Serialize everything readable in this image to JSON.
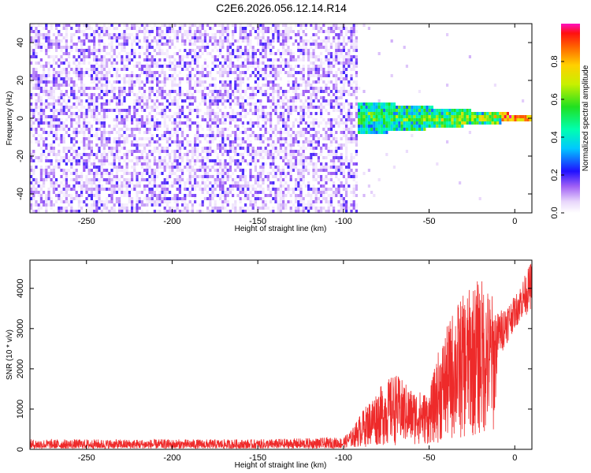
{
  "title": "C2E6.2026.056.12.14.R14",
  "colors": {
    "spectrogram_base": "#7a1ff0",
    "snr_line": "#ee2a2a",
    "frame": "#000000"
  },
  "chart_data": [
    {
      "type": "heatmap",
      "name": "spectrogram",
      "title": "C2E6.2026.056.12.14.R14",
      "xlabel": "Height of straight line (km)",
      "ylabel": "Frequency (Hz)",
      "xlim": [
        -283,
        10
      ],
      "ylim": [
        -50,
        50
      ],
      "x_ticks": [
        -250,
        -200,
        -150,
        -100,
        -50,
        0
      ],
      "y_ticks": [
        -40,
        -20,
        0,
        20,
        40
      ],
      "noise_region": {
        "x": [
          -283,
          -92
        ],
        "y": [
          -50,
          50
        ],
        "amplitude": [
          0.02,
          0.2
        ]
      },
      "signal_region": {
        "x": [
          -93,
          10
        ],
        "center_freq": 0,
        "half_width_at_start": 7,
        "half_width_at_end": 1,
        "amplitude_peak": 1.0
      },
      "colorbar": {
        "label": "Normalized spectral amplitude",
        "range": [
          0,
          1
        ],
        "ticks": [
          "0.0",
          "0.2",
          "0.4",
          "0.6",
          "0.8"
        ],
        "tick_values": [
          0,
          0.2,
          0.4,
          0.6,
          0.8
        ]
      }
    },
    {
      "type": "line",
      "name": "snr",
      "xlabel": "Height of straight line (km)",
      "ylabel": "SNR (10 * v/v)",
      "xlim": [
        -283,
        10
      ],
      "ylim": [
        0,
        4700
      ],
      "x_ticks": [
        -250,
        -200,
        -150,
        -100,
        -50,
        0
      ],
      "y_ticks": [
        0,
        1000,
        2000,
        3000,
        4000
      ],
      "envelope": [
        {
          "x": -283,
          "low": 20,
          "high": 250
        },
        {
          "x": -150,
          "low": 20,
          "high": 250
        },
        {
          "x": -100,
          "low": 30,
          "high": 300
        },
        {
          "x": -95,
          "low": 40,
          "high": 500
        },
        {
          "x": -90,
          "low": 50,
          "high": 900
        },
        {
          "x": -80,
          "low": 80,
          "high": 1500
        },
        {
          "x": -70,
          "low": 100,
          "high": 1900
        },
        {
          "x": -60,
          "low": 100,
          "high": 1500
        },
        {
          "x": -50,
          "low": 120,
          "high": 1400
        },
        {
          "x": -45,
          "low": 150,
          "high": 2400
        },
        {
          "x": -35,
          "low": 200,
          "high": 3600
        },
        {
          "x": -20,
          "low": 300,
          "high": 4300
        },
        {
          "x": -12,
          "low": 400,
          "high": 3800
        },
        {
          "x": -10,
          "low": 2200,
          "high": 3400
        },
        {
          "x": 0,
          "low": 3000,
          "high": 3800
        },
        {
          "x": 10,
          "low": 3500,
          "high": 4700
        }
      ]
    }
  ]
}
